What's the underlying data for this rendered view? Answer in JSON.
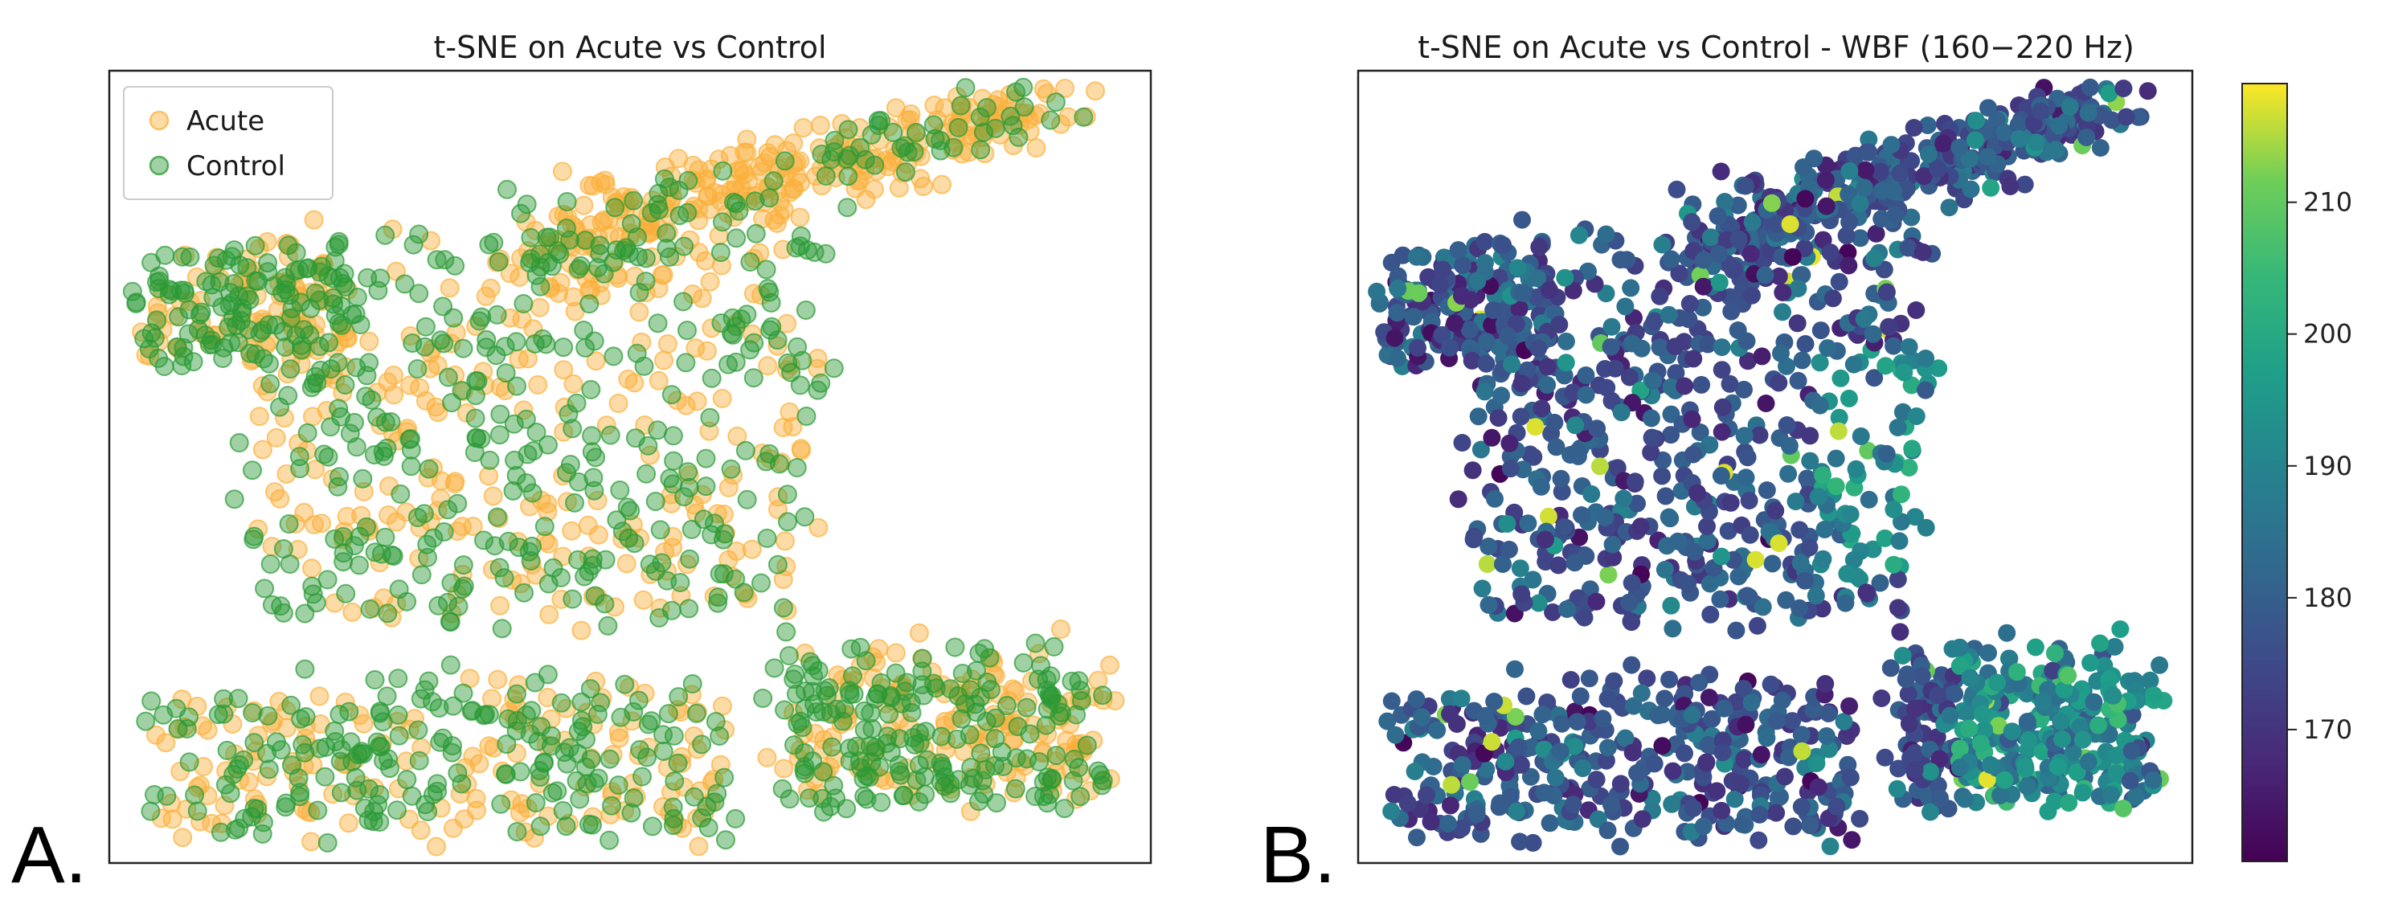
{
  "panel_labels": {
    "a": "A.",
    "b": "B."
  },
  "chart_data": [
    {
      "type": "scatter",
      "title": "t-SNE on Acute vs Control",
      "xlabel": "",
      "ylabel": "",
      "grid": false,
      "legend_position": "top-left",
      "series": [
        {
          "name": "Acute",
          "color": "#fbb03b",
          "alpha": 0.45
        },
        {
          "name": "Control",
          "color": "#2a9a35",
          "alpha": 0.45
        }
      ],
      "clusters": [
        {
          "series": "Acute",
          "points": [
            [
              82,
              92
            ],
            [
              76,
              94
            ],
            [
              70,
              91
            ],
            [
              65,
              88
            ],
            [
              60,
              86
            ],
            [
              55,
              85
            ],
            [
              50,
              84
            ],
            [
              45,
              86
            ],
            [
              40,
              85
            ],
            [
              35,
              80
            ],
            [
              30,
              78
            ],
            [
              42,
              60
            ],
            [
              50,
              55
            ],
            [
              38,
              45
            ],
            [
              33,
              40
            ],
            [
              28,
              30
            ],
            [
              22,
              25
            ],
            [
              20,
              18
            ],
            [
              12,
              8
            ],
            [
              8,
              5
            ],
            [
              5,
              72
            ],
            [
              3,
              63
            ],
            [
              25,
              55
            ],
            [
              35,
              30
            ],
            [
              45,
              25
            ],
            [
              60,
              10
            ],
            [
              70,
              20
            ],
            [
              76,
              28
            ],
            [
              85,
              25
            ],
            [
              90,
              20
            ]
          ]
        },
        {
          "series": "Control",
          "points": [
            [
              6,
              66
            ],
            [
              10,
              60
            ],
            [
              15,
              64
            ],
            [
              20,
              55
            ],
            [
              25,
              50
            ],
            [
              30,
              45
            ],
            [
              35,
              55
            ],
            [
              40,
              50
            ],
            [
              45,
              40
            ],
            [
              50,
              35
            ],
            [
              55,
              45
            ],
            [
              60,
              55
            ],
            [
              65,
              50
            ],
            [
              70,
              60
            ],
            [
              72,
              40
            ],
            [
              80,
              30
            ],
            [
              85,
              20
            ],
            [
              90,
              18
            ],
            [
              95,
              20
            ],
            [
              75,
              15
            ],
            [
              60,
              20
            ],
            [
              55,
              10
            ],
            [
              45,
              8
            ],
            [
              40,
              15
            ],
            [
              35,
              20
            ],
            [
              30,
              10
            ],
            [
              25,
              5
            ],
            [
              20,
              15
            ],
            [
              15,
              10
            ],
            [
              5,
              4
            ],
            [
              30,
              70
            ],
            [
              40,
              72
            ],
            [
              50,
              75
            ],
            [
              55,
              80
            ],
            [
              65,
              70
            ]
          ]
        }
      ]
    },
    {
      "type": "scatter",
      "title": "t-SNE on Acute vs Control - WBF (160−220 Hz)",
      "xlabel": "",
      "ylabel": "",
      "grid": false,
      "colorbar": {
        "colormap": "viridis",
        "range": [
          160,
          220
        ],
        "ticks": [
          "170",
          "180",
          "190",
          "200",
          "210"
        ],
        "tick_values": [
          170,
          180,
          190,
          200,
          210
        ],
        "display_range": [
          160,
          219
        ]
      }
    }
  ]
}
